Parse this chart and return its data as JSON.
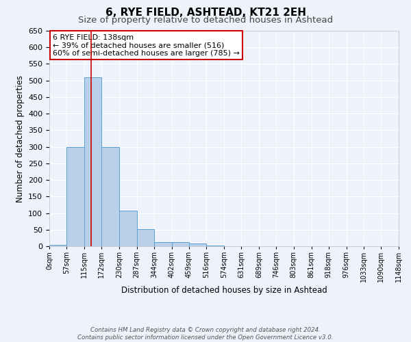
{
  "title": "6, RYE FIELD, ASHTEAD, KT21 2EH",
  "subtitle": "Size of property relative to detached houses in Ashtead",
  "xlabel": "Distribution of detached houses by size in Ashtead",
  "ylabel": "Number of detached properties",
  "bin_edges": [
    0,
    57,
    115,
    172,
    230,
    287,
    344,
    402,
    459,
    516,
    574,
    631,
    689,
    746,
    803,
    861,
    918,
    976,
    1033,
    1090,
    1148
  ],
  "bar_heights": [
    5,
    300,
    510,
    300,
    108,
    52,
    13,
    13,
    8,
    2,
    1,
    1,
    1,
    1,
    1,
    1,
    0,
    0,
    0,
    1
  ],
  "bar_color": "#b8d0ea",
  "bar_edge_color": "#5a9fd4",
  "red_line_x": 138,
  "ylim": [
    0,
    650
  ],
  "yticks": [
    0,
    50,
    100,
    150,
    200,
    250,
    300,
    350,
    400,
    450,
    500,
    550,
    600,
    650
  ],
  "xtick_labels": [
    "0sqm",
    "57sqm",
    "115sqm",
    "172sqm",
    "230sqm",
    "287sqm",
    "344sqm",
    "402sqm",
    "459sqm",
    "516sqm",
    "574sqm",
    "631sqm",
    "689sqm",
    "746sqm",
    "803sqm",
    "861sqm",
    "918sqm",
    "976sqm",
    "1033sqm",
    "1090sqm",
    "1148sqm"
  ],
  "annotation_title": "6 RYE FIELD: 138sqm",
  "annotation_line1": "← 39% of detached houses are smaller (516)",
  "annotation_line2": "60% of semi-detached houses are larger (785) →",
  "annotation_box_color": "white",
  "annotation_box_edge": "#cc0000",
  "footer_line1": "Contains HM Land Registry data © Crown copyright and database right 2024.",
  "footer_line2": "Contains public sector information licensed under the Open Government Licence v3.0.",
  "background_color": "#eef2fb",
  "grid_color": "white",
  "title_fontsize": 11,
  "subtitle_fontsize": 9.5
}
